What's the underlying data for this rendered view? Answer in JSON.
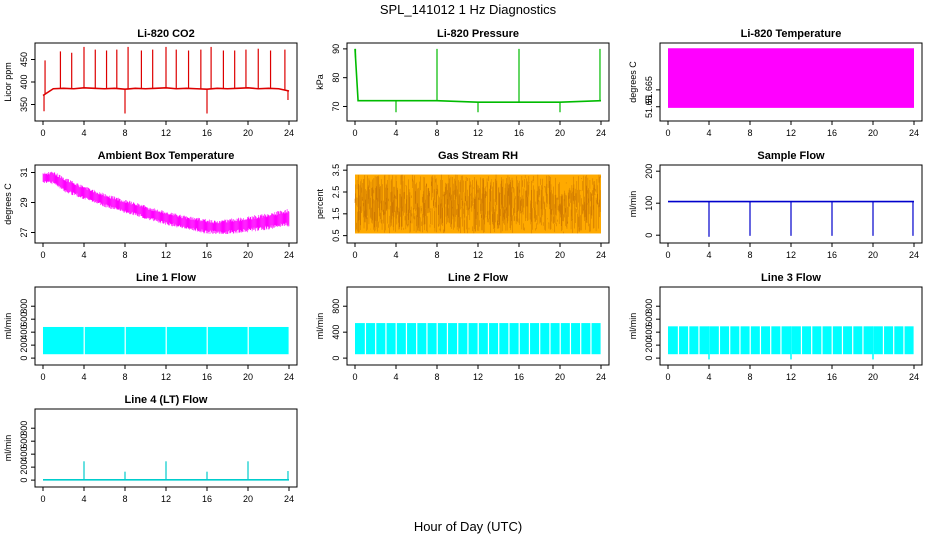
{
  "figure": {
    "title": "SPL_141012  1 Hz Diagnostics",
    "xlabel": "Hour of Day (UTC)"
  },
  "chart_data": [
    {
      "id": "co2",
      "type": "line",
      "title": "Li-820 CO2",
      "ylabel": "Licor ppm",
      "color": "#dd0000",
      "xlim": [
        0,
        24
      ],
      "ylim": [
        320,
        480
      ],
      "xticks": [
        0,
        4,
        8,
        12,
        16,
        20,
        24
      ],
      "yticks": [
        350,
        400,
        450
      ],
      "x": [
        0,
        1,
        2,
        3,
        4,
        5,
        6,
        7,
        8,
        9,
        10,
        11,
        12,
        13,
        14,
        15,
        16,
        17,
        18,
        19,
        20,
        21,
        22,
        23,
        24
      ],
      "values": [
        370,
        385,
        386,
        385,
        387,
        386,
        385,
        386,
        384,
        386,
        385,
        386,
        387,
        385,
        386,
        385,
        384,
        386,
        385,
        386,
        387,
        385,
        386,
        385,
        380
      ],
      "spikes": [
        {
          "x": 0.2,
          "y": 448
        },
        {
          "x": 1.7,
          "y": 468
        },
        {
          "x": 2.8,
          "y": 465
        },
        {
          "x": 4.0,
          "y": 478
        },
        {
          "x": 5.1,
          "y": 472
        },
        {
          "x": 6.2,
          "y": 470
        },
        {
          "x": 7.2,
          "y": 472
        },
        {
          "x": 8.3,
          "y": 478
        },
        {
          "x": 9.6,
          "y": 470
        },
        {
          "x": 10.7,
          "y": 472
        },
        {
          "x": 12.0,
          "y": 478
        },
        {
          "x": 13.0,
          "y": 472
        },
        {
          "x": 14.2,
          "y": 470
        },
        {
          "x": 15.4,
          "y": 472
        },
        {
          "x": 16.4,
          "y": 478
        },
        {
          "x": 17.6,
          "y": 470
        },
        {
          "x": 18.7,
          "y": 470
        },
        {
          "x": 19.8,
          "y": 472
        },
        {
          "x": 21.0,
          "y": 474
        },
        {
          "x": 22.2,
          "y": 470
        },
        {
          "x": 23.6,
          "y": 472
        }
      ],
      "dips": [
        {
          "x": 0.1,
          "y": 335
        },
        {
          "x": 8.0,
          "y": 330
        },
        {
          "x": 16.0,
          "y": 330
        },
        {
          "x": 23.9,
          "y": 360
        }
      ]
    },
    {
      "id": "pressure",
      "type": "line",
      "title": "Li-820 Pressure",
      "ylabel": "kPa",
      "color": "#00bb00",
      "xlim": [
        0,
        24
      ],
      "ylim": [
        66,
        91
      ],
      "xticks": [
        0,
        4,
        8,
        12,
        16,
        20,
        24
      ],
      "yticks": [
        70,
        80,
        90
      ],
      "x": [
        0,
        0.3,
        4,
        8,
        12,
        16,
        20,
        24
      ],
      "values": [
        90,
        72,
        72,
        72,
        71.5,
        71.5,
        71.5,
        72
      ],
      "spikes": [
        {
          "x": 0.05,
          "y": 90
        },
        {
          "x": 8.0,
          "y": 90
        },
        {
          "x": 16.0,
          "y": 90
        },
        {
          "x": 23.9,
          "y": 90
        }
      ],
      "dips": [
        {
          "x": 4.0,
          "y": 68
        },
        {
          "x": 12.0,
          "y": 68
        },
        {
          "x": 20.0,
          "y": 68
        }
      ]
    },
    {
      "id": "temp",
      "type": "area",
      "title": "Li-820 Temperature",
      "ylabel": "degrees C",
      "color": "#ff00ff",
      "xlim": [
        0,
        24
      ],
      "ylim": [
        51.64,
        51.704
      ],
      "xticks": [
        0,
        4,
        8,
        12,
        16,
        20,
        24
      ],
      "yticks": [
        51.65,
        51.665
      ],
      "band": {
        "low": 51.649,
        "high": 51.702
      }
    },
    {
      "id": "ambient",
      "type": "area",
      "title": "Ambient Box Temperature",
      "ylabel": "degrees C",
      "color": "#ff00ff",
      "xlim": [
        0,
        24
      ],
      "ylim": [
        26.5,
        31.3
      ],
      "xticks": [
        0,
        4,
        8,
        12,
        16,
        20,
        24
      ],
      "yticks": [
        27,
        29,
        31
      ],
      "x": [
        0,
        1,
        2,
        4,
        6,
        8,
        10,
        12,
        14,
        16,
        17,
        18,
        20,
        22,
        24
      ],
      "low": [
        30.3,
        30.2,
        29.7,
        29.2,
        28.7,
        28.3,
        27.9,
        27.5,
        27.2,
        26.9,
        26.9,
        26.9,
        27.0,
        27.2,
        27.4
      ],
      "high": [
        31.0,
        31.1,
        30.7,
        30.1,
        29.6,
        29.2,
        28.8,
        28.4,
        28.1,
        27.9,
        27.8,
        27.9,
        28.1,
        28.3,
        28.6
      ]
    },
    {
      "id": "rh",
      "type": "area",
      "title": "Gas Stream RH",
      "ylabel": "percent",
      "color": "#ffaa00",
      "xlim": [
        0,
        24
      ],
      "ylim": [
        0.3,
        3.6
      ],
      "xticks": [
        0,
        4,
        8,
        12,
        16,
        20,
        24
      ],
      "yticks": [
        0.5,
        1.5,
        2.5,
        3.5
      ],
      "band": {
        "low": 0.6,
        "high": 3.3
      }
    },
    {
      "id": "sample",
      "type": "line",
      "title": "Sample Flow",
      "ylabel": "ml/min",
      "color": "#0000cc",
      "xlim": [
        0,
        24
      ],
      "ylim": [
        -15,
        210
      ],
      "xticks": [
        0,
        4,
        8,
        12,
        16,
        20,
        24
      ],
      "yticks": [
        0,
        100,
        200
      ],
      "x": [
        0,
        24
      ],
      "values": [
        105,
        105
      ],
      "dips": [
        {
          "x": 4.0,
          "y": -5
        },
        {
          "x": 8.0,
          "y": -2
        },
        {
          "x": 12.0,
          "y": -2
        },
        {
          "x": 16.0,
          "y": -2
        },
        {
          "x": 20.0,
          "y": -2
        },
        {
          "x": 23.9,
          "y": -2
        }
      ]
    },
    {
      "id": "line1",
      "type": "area",
      "title": "Line 1 Flow",
      "ylabel": "ml/min",
      "color": "#00ffff",
      "xlim": [
        0,
        24
      ],
      "ylim": [
        -60,
        1050
      ],
      "xticks": [
        0,
        4,
        8,
        12,
        16,
        20,
        24
      ],
      "yticks": [
        0,
        200,
        400,
        600,
        800
      ],
      "band": {
        "low": 60,
        "high": 480
      },
      "gaps": [
        4.0,
        8.0,
        12.0,
        16.0,
        20.0
      ]
    },
    {
      "id": "line2",
      "type": "area",
      "title": "Line 2 Flow",
      "ylabel": "ml/min",
      "color": "#00ffff",
      "xlim": [
        0,
        24
      ],
      "ylim": [
        -60,
        1050
      ],
      "xticks": [
        0,
        4,
        8,
        12,
        16,
        20,
        24
      ],
      "yticks": [
        0,
        400,
        800
      ],
      "band": {
        "low": 60,
        "high": 540
      },
      "gaps": [
        1.0,
        2.0,
        3.0,
        4.0,
        5.0,
        6.0,
        7.0,
        8.0,
        9.0,
        10.0,
        11.0,
        12.0,
        13.0,
        14.0,
        15.0,
        16.0,
        17.0,
        18.0,
        19.0,
        20.0,
        21.0,
        22.0,
        23.0
      ]
    },
    {
      "id": "line3",
      "type": "area",
      "title": "Line 3 Flow",
      "ylabel": "ml/min",
      "color": "#00ffff",
      "xlim": [
        0,
        24
      ],
      "ylim": [
        -60,
        1050
      ],
      "xticks": [
        0,
        4,
        8,
        12,
        16,
        20,
        24
      ],
      "yticks": [
        0,
        200,
        400,
        600,
        800
      ],
      "band": {
        "low": 60,
        "high": 490
      },
      "gaps": [
        1.0,
        2.0,
        3.0,
        4.0,
        5.0,
        6.0,
        7.0,
        8.0,
        9.0,
        10.0,
        11.0,
        12.0,
        13.0,
        14.0,
        15.0,
        16.0,
        17.0,
        18.0,
        19.0,
        20.0,
        21.0,
        22.0,
        23.0
      ],
      "dips": [
        {
          "x": 4.0,
          "y": -20
        },
        {
          "x": 12.0,
          "y": -20
        },
        {
          "x": 20.0,
          "y": -20
        }
      ]
    },
    {
      "id": "line4",
      "type": "line",
      "title": "Line 4 (LT) Flow",
      "ylabel": "ml/min",
      "color": "#00cccc",
      "xlim": [
        0,
        24
      ],
      "ylim": [
        -60,
        1050
      ],
      "xticks": [
        0,
        4,
        8,
        12,
        16,
        20,
        24
      ],
      "yticks": [
        0,
        200,
        400,
        600,
        800
      ],
      "x": [
        0,
        24
      ],
      "values": [
        5,
        5
      ],
      "spikes": [
        {
          "x": 4.0,
          "y": 290
        },
        {
          "x": 8.0,
          "y": 130
        },
        {
          "x": 12.0,
          "y": 290
        },
        {
          "x": 16.0,
          "y": 130
        },
        {
          "x": 20.0,
          "y": 290
        },
        {
          "x": 23.9,
          "y": 140
        }
      ]
    }
  ]
}
